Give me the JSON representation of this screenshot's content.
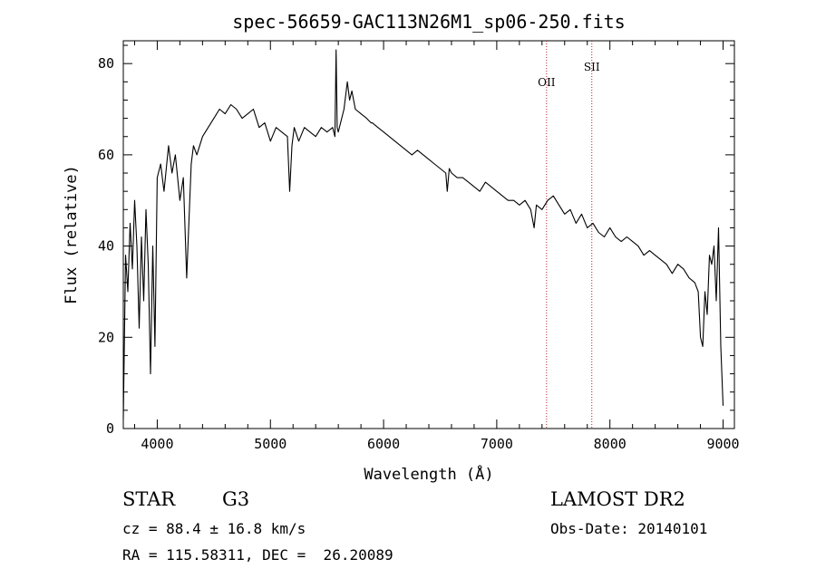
{
  "chart_data": {
    "type": "line",
    "title": "spec-56659-GAC113N26M1_sp06-250.fits",
    "xlabel": "Wavelength (Å)",
    "ylabel": "Flux (relative)",
    "xlim": [
      3700,
      9100
    ],
    "ylim": [
      0,
      85
    ],
    "xticks": [
      4000,
      5000,
      6000,
      7000,
      8000,
      9000
    ],
    "yticks": [
      0,
      20,
      40,
      60,
      80
    ],
    "grid": false,
    "series": [
      {
        "x": [
          3700,
          3720,
          3740,
          3760,
          3780,
          3800,
          3820,
          3840,
          3860,
          3880,
          3900,
          3920,
          3940,
          3960,
          3980,
          4000,
          4030,
          4060,
          4100,
          4130,
          4160,
          4200,
          4230,
          4260,
          4300,
          4320,
          4350,
          4400,
          4450,
          4500,
          4550,
          4600,
          4650,
          4700,
          4750,
          4800,
          4850,
          4900,
          4950,
          5000,
          5050,
          5100,
          5150,
          5170,
          5190,
          5210,
          5250,
          5300,
          5350,
          5400,
          5450,
          5500,
          5550,
          5570,
          5580,
          5590,
          5600,
          5650,
          5680,
          5700,
          5720,
          5750,
          5800,
          5850,
          5890,
          5900,
          5950,
          6000,
          6050,
          6100,
          6150,
          6200,
          6250,
          6300,
          6350,
          6400,
          6450,
          6500,
          6550,
          6563,
          6580,
          6600,
          6650,
          6700,
          6750,
          6800,
          6850,
          6900,
          6950,
          7000,
          7050,
          7100,
          7150,
          7200,
          7250,
          7300,
          7330,
          7350,
          7400,
          7450,
          7500,
          7550,
          7600,
          7650,
          7700,
          7750,
          7800,
          7850,
          7900,
          7950,
          8000,
          8050,
          8100,
          8150,
          8200,
          8250,
          8300,
          8350,
          8400,
          8450,
          8500,
          8550,
          8600,
          8650,
          8700,
          8750,
          8780,
          8800,
          8820,
          8840,
          8860,
          8880,
          8900,
          8920,
          8940,
          8960,
          8980,
          9000
        ],
        "y": [
          2,
          38,
          30,
          45,
          35,
          50,
          40,
          22,
          42,
          28,
          48,
          36,
          12,
          40,
          18,
          55,
          58,
          52,
          62,
          56,
          60,
          50,
          55,
          33,
          58,
          62,
          60,
          64,
          66,
          68,
          70,
          69,
          71,
          70,
          68,
          69,
          70,
          66,
          67,
          63,
          66,
          65,
          64,
          52,
          62,
          66,
          63,
          66,
          65,
          64,
          66,
          65,
          66,
          64,
          83,
          66,
          65,
          70,
          76,
          72,
          74,
          70,
          69,
          68,
          67,
          67,
          66,
          65,
          64,
          63,
          62,
          61,
          60,
          61,
          60,
          59,
          58,
          57,
          56,
          52,
          57,
          56,
          55,
          55,
          54,
          53,
          52,
          54,
          53,
          52,
          51,
          50,
          50,
          49,
          50,
          48,
          44,
          49,
          48,
          50,
          51,
          49,
          47,
          48,
          45,
          47,
          44,
          45,
          43,
          42,
          44,
          42,
          41,
          42,
          41,
          40,
          38,
          39,
          38,
          37,
          36,
          34,
          36,
          35,
          33,
          32,
          30,
          20,
          18,
          30,
          25,
          38,
          36,
          40,
          28,
          44,
          18,
          5
        ]
      }
    ],
    "annotations": [
      {
        "label": "OII",
        "x": 7440
      },
      {
        "label": "SII",
        "x": 7840
      }
    ]
  },
  "info": {
    "class": "STAR",
    "subclass": "G3",
    "survey": "LAMOST DR2",
    "cz": "cz = 88.4 ± 16.8 km/s",
    "obs_date": "Obs-Date: 20140101",
    "radec": "RA = 115.58311, DEC =  26.20089"
  }
}
